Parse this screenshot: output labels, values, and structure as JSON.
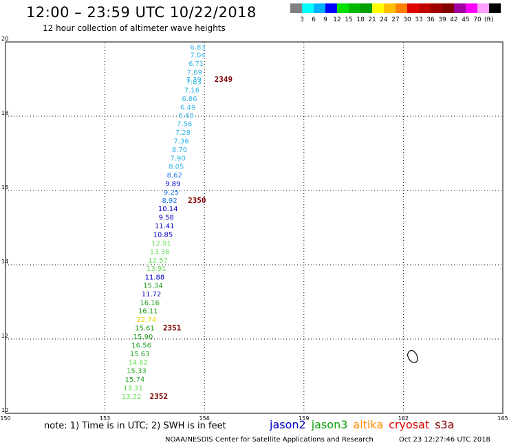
{
  "header": {
    "title": "12:00 – 23:59 UTC 10/22/2018",
    "subtitle": "12 hour collection of altimeter wave heights"
  },
  "color_scale": {
    "unit": "(ft)",
    "colors": [
      "#808080",
      "#00ffff",
      "#00b0ff",
      "#0000ff",
      "#00e000",
      "#00b800",
      "#00a000",
      "#ffff00",
      "#ffc000",
      "#ff8000",
      "#e00000",
      "#c00000",
      "#a00000",
      "#800000",
      "#a000a0",
      "#ff00ff",
      "#ffa0ff",
      "#000000"
    ],
    "labels": [
      "3",
      "6",
      "9",
      "12",
      "15",
      "18",
      "21",
      "24",
      "27",
      "30",
      "33",
      "36",
      "39",
      "42",
      "45",
      "70"
    ]
  },
  "chart_data": {
    "type": "scatter",
    "title": "12:00 – 23:59 UTC 10/22/2018",
    "subtitle": "12 hour collection of altimeter wave heights",
    "xlim": [
      150,
      165
    ],
    "ylim": [
      10,
      20
    ],
    "x_ticks": [
      "150",
      "153",
      "156",
      "159",
      "162",
      "165"
    ],
    "y_ticks": [
      "10",
      "12",
      "14",
      "16",
      "18",
      "20"
    ],
    "grid": true,
    "units": "ft",
    "wave_heights": [
      {
        "value": "6.83",
        "lon": 155.8,
        "lat": 19.8,
        "color": "#33b5e5"
      },
      {
        "value": "7.04",
        "lon": 155.8,
        "lat": 19.58,
        "color": "#33b5e5"
      },
      {
        "value": "6.71",
        "lon": 155.75,
        "lat": 19.35,
        "color": "#33b5e5"
      },
      {
        "value": "7.69",
        "lon": 155.7,
        "lat": 19.12,
        "color": "#33b5e5"
      },
      {
        "value": "7.39",
        "lon": 155.68,
        "lat": 18.93,
        "color": "#33b5e5"
      },
      {
        "value": "7.83",
        "lon": 155.68,
        "lat": 18.86,
        "color": "#33b5e5"
      },
      {
        "value": "7.16",
        "lon": 155.62,
        "lat": 18.64,
        "color": "#33b5e5"
      },
      {
        "value": "6.86",
        "lon": 155.55,
        "lat": 18.41,
        "color": "#33b5e5"
      },
      {
        "value": "6.49",
        "lon": 155.5,
        "lat": 18.18,
        "color": "#33b5e5"
      },
      {
        "value": "6.68",
        "lon": 155.45,
        "lat": 17.96,
        "color": "#33b5e5"
      },
      {
        "value": "7.56",
        "lon": 155.4,
        "lat": 17.73,
        "color": "#33b5e5"
      },
      {
        "value": "7.28",
        "lon": 155.35,
        "lat": 17.5,
        "color": "#33b5e5"
      },
      {
        "value": "7.36",
        "lon": 155.3,
        "lat": 17.27,
        "color": "#33b5e5"
      },
      {
        "value": "8.70",
        "lon": 155.25,
        "lat": 17.04,
        "color": "#33b5e5"
      },
      {
        "value": "7.90",
        "lon": 155.2,
        "lat": 16.81,
        "color": "#33b5e5"
      },
      {
        "value": "8.05",
        "lon": 155.15,
        "lat": 16.58,
        "color": "#33b5e5"
      },
      {
        "value": "8.62",
        "lon": 155.1,
        "lat": 16.35,
        "color": "#1a73e8"
      },
      {
        "value": "9.89",
        "lon": 155.05,
        "lat": 16.12,
        "color": "#0000c8"
      },
      {
        "value": "9.25",
        "lon": 155.0,
        "lat": 15.89,
        "color": "#1a73e8"
      },
      {
        "value": "8.92",
        "lon": 154.95,
        "lat": 15.67,
        "color": "#1a73e8"
      },
      {
        "value": "10.14",
        "lon": 154.9,
        "lat": 15.44,
        "color": "#0000c8"
      },
      {
        "value": "9.58",
        "lon": 154.85,
        "lat": 15.21,
        "color": "#0000c8"
      },
      {
        "value": "11.41",
        "lon": 154.8,
        "lat": 14.98,
        "color": "#0000c8"
      },
      {
        "value": "10.85",
        "lon": 154.75,
        "lat": 14.75,
        "color": "#0000c8"
      },
      {
        "value": "12.91",
        "lon": 154.7,
        "lat": 14.52,
        "color": "#66dd55"
      },
      {
        "value": "13.38",
        "lon": 154.65,
        "lat": 14.29,
        "color": "#66dd55"
      },
      {
        "value": "12.57",
        "lon": 154.6,
        "lat": 14.06,
        "color": "#66dd55"
      },
      {
        "value": "13.91",
        "lon": 154.55,
        "lat": 13.83,
        "color": "#66dd55"
      },
      {
        "value": "11.88",
        "lon": 154.5,
        "lat": 13.6,
        "color": "#0000c8"
      },
      {
        "value": "15.34",
        "lon": 154.45,
        "lat": 13.38,
        "color": "#20a020"
      },
      {
        "value": "11.72",
        "lon": 154.4,
        "lat": 13.15,
        "color": "#0000c8"
      },
      {
        "value": "16.16",
        "lon": 154.35,
        "lat": 12.92,
        "color": "#20a020"
      },
      {
        "value": "16.11",
        "lon": 154.3,
        "lat": 12.69,
        "color": "#20a020"
      },
      {
        "value": "22.74",
        "lon": 154.25,
        "lat": 12.46,
        "color": "#e6d800"
      },
      {
        "value": "15.61",
        "lon": 154.2,
        "lat": 12.23,
        "color": "#20a020"
      },
      {
        "value": "15.90",
        "lon": 154.15,
        "lat": 12.0,
        "color": "#20a020"
      },
      {
        "value": "16.56",
        "lon": 154.1,
        "lat": 11.77,
        "color": "#20a020"
      },
      {
        "value": "15.63",
        "lon": 154.05,
        "lat": 11.54,
        "color": "#20a020"
      },
      {
        "value": "14.62",
        "lon": 154.0,
        "lat": 11.31,
        "color": "#66dd55"
      },
      {
        "value": "15.33",
        "lon": 153.95,
        "lat": 11.08,
        "color": "#20a020"
      },
      {
        "value": "15.74",
        "lon": 153.9,
        "lat": 10.85,
        "color": "#20a020"
      },
      {
        "value": "13.31",
        "lon": 153.85,
        "lat": 10.62,
        "color": "#66dd55"
      },
      {
        "value": "13.22",
        "lon": 153.8,
        "lat": 10.39,
        "color": "#66dd55"
      }
    ],
    "time_labels": [
      {
        "text": "2349",
        "lon": 156.3,
        "lat": 18.93,
        "color": "#800000"
      },
      {
        "text": "2350",
        "lon": 155.5,
        "lat": 15.67,
        "color": "#800000"
      },
      {
        "text": "2351",
        "lon": 154.75,
        "lat": 12.23,
        "color": "#800000"
      },
      {
        "text": "2352",
        "lon": 154.35,
        "lat": 10.39,
        "color": "#800000"
      }
    ],
    "island_outline": {
      "lon": 162.25,
      "lat": 11.5
    }
  },
  "footer": {
    "note": "note: 1) Time is in UTC; 2) SWH is in feet",
    "legend": [
      {
        "label": "jason2",
        "color": "#0000c8"
      },
      {
        "label": "jason3",
        "color": "#10a010"
      },
      {
        "label": "altika",
        "color": "#ff8c00"
      },
      {
        "label": "cryosat",
        "color": "#e00000"
      },
      {
        "label": "s3a",
        "color": "#800000"
      }
    ],
    "credit": "NOAA/NESDIS Center for Satellite Applications and Research",
    "timestamp": "Oct 23 12:27:46 UTC 2018"
  }
}
